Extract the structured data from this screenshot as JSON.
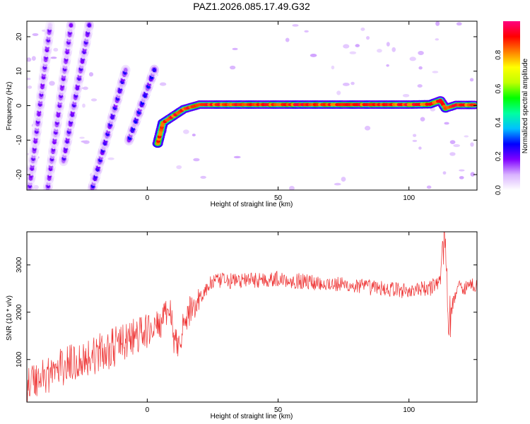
{
  "title": "PAZ1.2026.085.17.49.G32",
  "chart_data": [
    {
      "type": "heatmap",
      "title": "PAZ1.2026.085.17.49.G32",
      "xlabel": "Height of straight line (km)",
      "ylabel": "Frequency (Hz)",
      "xlim": [
        -46,
        126
      ],
      "ylim": [
        -24.5,
        24.5
      ],
      "xticks": [
        0,
        50,
        100
      ],
      "yticks": [
        -20,
        -10,
        0,
        10,
        20
      ],
      "colorbar": {
        "label": "Normalized spectral amplitude",
        "range": [
          0,
          1
        ],
        "ticks": [
          0.0,
          0.2,
          0.4,
          0.6,
          0.8
        ],
        "tick_labels": [
          "0.0",
          "0.2",
          "0.4",
          "0.6",
          "0.8"
        ],
        "colormap": [
          "#ffffff",
          "#d9b3ff",
          "#8000ff",
          "#0000ff",
          "#00c0ff",
          "#00ffa0",
          "#00ff00",
          "#c0ff00",
          "#ffff00",
          "#ff8000",
          "#ff0000",
          "#ff0080"
        ]
      },
      "ridges": [
        {
          "name": "ghost-1",
          "points": [
            [
              -45,
              -24
            ],
            [
              -37,
              24
            ]
          ],
          "amplitude": 0.2
        },
        {
          "name": "ghost-2",
          "points": [
            [
              -38,
              -24
            ],
            [
              -29,
              24
            ]
          ],
          "amplitude": 0.2
        },
        {
          "name": "ghost-3",
          "points": [
            [
              -32,
              -16
            ],
            [
              -22,
              24
            ]
          ],
          "amplitude": 0.22
        },
        {
          "name": "ghost-4",
          "points": [
            [
              -21,
              -24
            ],
            [
              -8,
              11
            ]
          ],
          "amplitude": 0.25
        },
        {
          "name": "ghost-5",
          "points": [
            [
              -7,
              -10
            ],
            [
              3,
              11
            ]
          ],
          "amplitude": 0.28
        },
        {
          "name": "main-trace",
          "points": [
            [
              4,
              -11
            ],
            [
              6,
              -5
            ],
            [
              10,
              -3
            ],
            [
              14,
              -1
            ],
            [
              20,
              0.3
            ],
            [
              50,
              0.3
            ],
            [
              100,
              0.3
            ],
            [
              108,
              0.4
            ],
            [
              112,
              1.5
            ],
            [
              114,
              -0.8
            ],
            [
              118,
              0.2
            ],
            [
              126,
              0.2
            ]
          ],
          "amplitude": 0.95
        }
      ]
    },
    {
      "type": "line",
      "xlabel": "Height of straight line (km)",
      "ylabel": "SNR (10 * v/v)",
      "xlim": [
        -46,
        126
      ],
      "ylim": [
        100,
        3700
      ],
      "xticks": [
        0,
        50,
        100
      ],
      "yticks": [
        1000,
        2000,
        3000
      ],
      "color": "#ee3333",
      "series": [
        {
          "name": "SNR",
          "trend": [
            [
              -46,
              500
            ],
            [
              -30,
              900
            ],
            [
              -15,
              1200
            ],
            [
              0,
              1600
            ],
            [
              5,
              1750
            ],
            [
              8,
              2000
            ],
            [
              9,
              2100
            ],
            [
              10,
              1300
            ],
            [
              12,
              1400
            ],
            [
              16,
              2000
            ],
            [
              20,
              2300
            ],
            [
              25,
              2650
            ],
            [
              50,
              2700
            ],
            [
              100,
              2450
            ],
            [
              108,
              2500
            ],
            [
              112,
              2700
            ],
            [
              113,
              3300
            ],
            [
              114,
              3700
            ],
            [
              115,
              1700
            ],
            [
              118,
              2500
            ],
            [
              126,
              2600
            ]
          ]
        }
      ]
    }
  ]
}
